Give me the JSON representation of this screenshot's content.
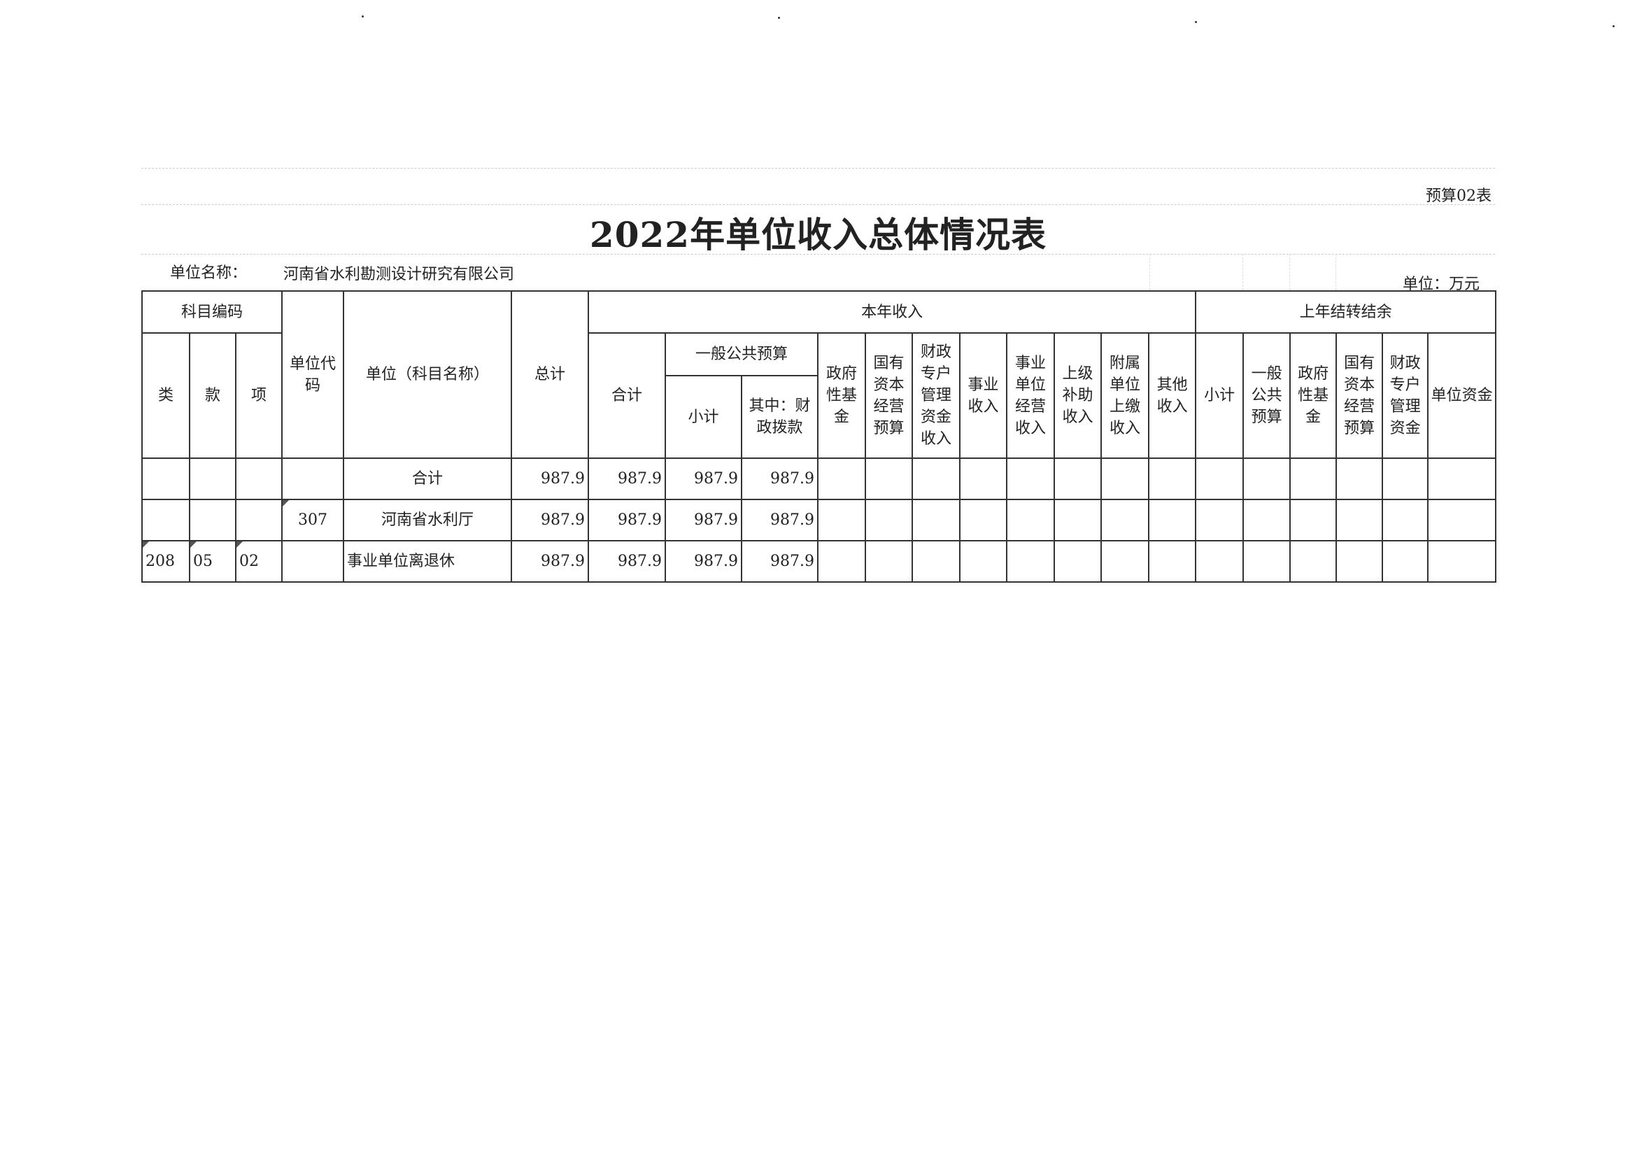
{
  "form_number": "预算02表",
  "title": "2022年单位收入总体情况表",
  "unit_name_label": "单位名称：",
  "unit_name": "河南省水利勘测设计研究有限公司",
  "currency_unit": "单位：万元",
  "table": {
    "headers": {
      "subject_code": "科目编码",
      "lei": "类",
      "kuan": "款",
      "xiang": "项",
      "unit_code": "单位代码",
      "unit_subject_name": "单位（科目名称）",
      "total": "总计",
      "current_year_income": "本年收入",
      "cy_total": "合计",
      "general_budget": "一般公共预算",
      "gb_subtotal": "小计",
      "gb_fiscal": "其中：财政拨款",
      "gov_fund": "政府性基金",
      "state_capital": "国有资本经营预算",
      "fiscal_special": "财政专户管理资金收入",
      "business_income": "事业收入",
      "business_operating": "事业单位经营收入",
      "superior_subsidy": "上级补助收入",
      "affiliated_payment": "附属单位上缴收入",
      "other_income": "其他收入",
      "prior_year_carryover": "上年结转结余",
      "py_subtotal": "小计",
      "py_general_budget": "一般公共预算",
      "py_gov_fund": "政府性基金",
      "py_state_capital": "国有资本经营预算",
      "py_fiscal_special": "财政专户管理资金",
      "py_unit_funds": "单位资金"
    },
    "rows": [
      {
        "lei": "",
        "kuan": "",
        "xiang": "",
        "unit_code": "",
        "name": "合计",
        "total": "987.9",
        "cy_total": "987.9",
        "gb_subtotal": "987.9",
        "gb_fiscal": "987.9"
      },
      {
        "lei": "",
        "kuan": "",
        "xiang": "",
        "unit_code": "307",
        "name": "河南省水利厅",
        "total": "987.9",
        "cy_total": "987.9",
        "gb_subtotal": "987.9",
        "gb_fiscal": "987.9"
      },
      {
        "lei": "208",
        "kuan": "05",
        "xiang": "02",
        "unit_code": "",
        "name": "事业单位离退休",
        "total": "987.9",
        "cy_total": "987.9",
        "gb_subtotal": "987.9",
        "gb_fiscal": "987.9"
      }
    ]
  }
}
